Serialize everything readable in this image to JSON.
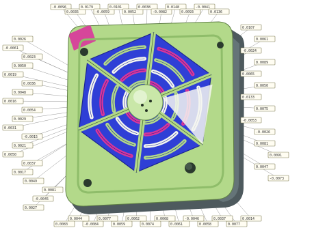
{
  "colors": {
    "plate_green": "#b3d98a",
    "plate_shadow": "#4e5a5e",
    "deviation_blue": "#2f3fd6",
    "deviation_magenta": "#d9359b",
    "slot_white": "#f4f6f1",
    "callout_fill": "#fffdf2"
  },
  "model": {
    "description_icon": "scanned-mold-insert",
    "hub_icon": "center-sphere-hub",
    "radial_web_count": 6,
    "corner_holes": 4
  },
  "callouts": [
    "-0.0096",
    "0.0035",
    "0.0179",
    "-0.0059",
    "0.0101",
    "0.0052",
    "0.0038",
    "-0.0082",
    "0.0148",
    "0.0093",
    "-0.0041",
    "0.0136",
    "0.0107",
    "0.0061",
    "-0.0024",
    "0.0089",
    "0.0065",
    "0.0050",
    "0.0133",
    "0.0075",
    "-0.0053",
    "-0.0026",
    "0.0081",
    "0.0091",
    "0.0047",
    "-0.0073",
    "0.0014",
    "0.0077",
    "0.0037",
    "0.0058",
    "-0.0046",
    "0.0061",
    "0.0068",
    "0.0074",
    "0.0062",
    "0.0059",
    "0.0077",
    "-0.0084",
    "0.0044",
    "0.0083",
    "0.0027",
    "-0.0045",
    "0.0081",
    "0.0049",
    "0.0017",
    "0.0037",
    "0.0050",
    "0.0021",
    "-0.0015",
    "0.0031",
    "0.0029",
    "0.0054",
    "0.0016",
    "0.0048",
    "0.0036",
    "0.0019",
    "0.0050",
    "0.0023",
    "-0.0061",
    "0.0026"
  ]
}
